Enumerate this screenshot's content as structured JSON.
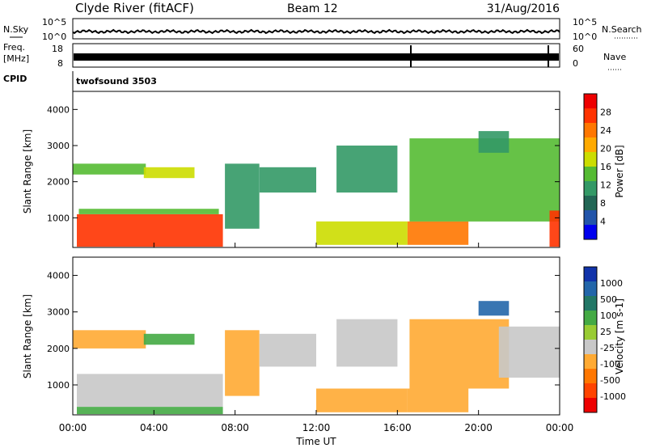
{
  "header": {
    "station": "Clyde River (fitACF)",
    "beam": "Beam 12",
    "date": "31/Aug/2016"
  },
  "panels": {
    "nsky_label": "N.Sky",
    "nsearch_label": "N.Search",
    "freq_label_1": "Freq.",
    "freq_label_2": "[MHz]",
    "nave_label": "Nave",
    "cpid_label": "CPID",
    "cpid_value": "twofsound 3503",
    "nsky_ticks": [
      "10^5",
      "10^0"
    ],
    "nsearch_ticks": [
      "10^5",
      "10^0"
    ],
    "freq_ticks": [
      "18",
      "8"
    ],
    "nave_ticks": [
      "60",
      "0"
    ]
  },
  "colorbars": {
    "power": {
      "label": "Power [dB]",
      "ticks": [
        "28",
        "24",
        "20",
        "16",
        "12",
        "8",
        "4"
      ],
      "colors": [
        "#ee0000",
        "#ff3300",
        "#ff7700",
        "#ffaa00",
        "#ccdd00",
        "#55bb33",
        "#339966",
        "#226655",
        "#2255aa",
        "#0000ee"
      ]
    },
    "velocity": {
      "label": "Velocity [m s-1]",
      "ticks": [
        "1000",
        "500",
        "100",
        "25",
        "-25",
        "-100",
        "-500",
        "-1000"
      ],
      "colors": [
        "#1133aa",
        "#2266aa",
        "#227766",
        "#44aa44",
        "#99cc33",
        "#c8c8c8",
        "#ffaa33",
        "#ff7700",
        "#ff4400",
        "#ee0000"
      ]
    }
  },
  "chart_data": [
    {
      "type": "heatmap",
      "name": "power",
      "ylabel": "Slant Range [km]",
      "yticks": [
        "4000",
        "3000",
        "2000",
        "1000"
      ],
      "ylim": [
        180,
        4500
      ],
      "xlim": [
        "00:00",
        "24:00"
      ],
      "zlabel": "Power [dB]",
      "zlim": [
        0,
        30
      ],
      "regions": [
        {
          "t": [
            0.2,
            7.4
          ],
          "r": [
            200,
            1100
          ],
          "v": 27
        },
        {
          "t": [
            0.3,
            7.2
          ],
          "r": [
            1100,
            1250
          ],
          "v": 14
        },
        {
          "t": [
            0.0,
            3.6
          ],
          "r": [
            2200,
            2500
          ],
          "v": 12
        },
        {
          "t": [
            3.5,
            6.0
          ],
          "r": [
            2100,
            2400
          ],
          "v": 16
        },
        {
          "t": [
            7.5,
            9.2
          ],
          "r": [
            700,
            2500
          ],
          "v": 10
        },
        {
          "t": [
            9.2,
            12.0
          ],
          "r": [
            1700,
            2400
          ],
          "v": 9
        },
        {
          "t": [
            12.0,
            16.5
          ],
          "r": [
            250,
            900
          ],
          "v": 18
        },
        {
          "t": [
            13.0,
            16.0
          ],
          "r": [
            1700,
            3000
          ],
          "v": 10
        },
        {
          "t": [
            16.5,
            19.5
          ],
          "r": [
            250,
            900
          ],
          "v": 24
        },
        {
          "t": [
            16.6,
            24.0
          ],
          "r": [
            900,
            3200
          ],
          "v": 14
        },
        {
          "t": [
            20.0,
            21.5
          ],
          "r": [
            2800,
            3400
          ],
          "v": 11
        },
        {
          "t": [
            23.5,
            24.0
          ],
          "r": [
            200,
            1200
          ],
          "v": 26
        }
      ]
    },
    {
      "type": "heatmap",
      "name": "velocity",
      "xlabel": "Time UT",
      "ylabel": "Slant Range [km]",
      "yticks": [
        "4000",
        "3000",
        "2000",
        "1000"
      ],
      "xticks": [
        "00:00",
        "04:00",
        "08:00",
        "12:00",
        "16:00",
        "20:00",
        "00:00"
      ],
      "ylim": [
        180,
        4500
      ],
      "xlim": [
        "00:00",
        "24:00"
      ],
      "zlabel": "Velocity [m s-1]",
      "zlim": [
        -1000,
        1000
      ],
      "regions": [
        {
          "t": [
            0.2,
            7.4
          ],
          "r": [
            400,
            1300
          ],
          "v": 0
        },
        {
          "t": [
            0.2,
            7.4
          ],
          "r": [
            200,
            400
          ],
          "v": 60
        },
        {
          "t": [
            0.0,
            3.6
          ],
          "r": [
            2000,
            2500
          ],
          "v": -150
        },
        {
          "t": [
            3.5,
            6.0
          ],
          "r": [
            2100,
            2400
          ],
          "v": 60
        },
        {
          "t": [
            7.5,
            9.2
          ],
          "r": [
            700,
            2500
          ],
          "v": -200
        },
        {
          "t": [
            9.2,
            12.0
          ],
          "r": [
            1500,
            2400
          ],
          "v": 0
        },
        {
          "t": [
            12.0,
            16.5
          ],
          "r": [
            250,
            900
          ],
          "v": -300
        },
        {
          "t": [
            13.0,
            16.0
          ],
          "r": [
            1500,
            2800
          ],
          "v": 0
        },
        {
          "t": [
            16.5,
            19.5
          ],
          "r": [
            250,
            900
          ],
          "v": -500
        },
        {
          "t": [
            16.6,
            21.5
          ],
          "r": [
            900,
            2800
          ],
          "v": -150
        },
        {
          "t": [
            20.0,
            21.5
          ],
          "r": [
            2900,
            3300
          ],
          "v": 600
        },
        {
          "t": [
            21.0,
            24.0
          ],
          "r": [
            1200,
            2600
          ],
          "v": 0
        }
      ]
    }
  ]
}
